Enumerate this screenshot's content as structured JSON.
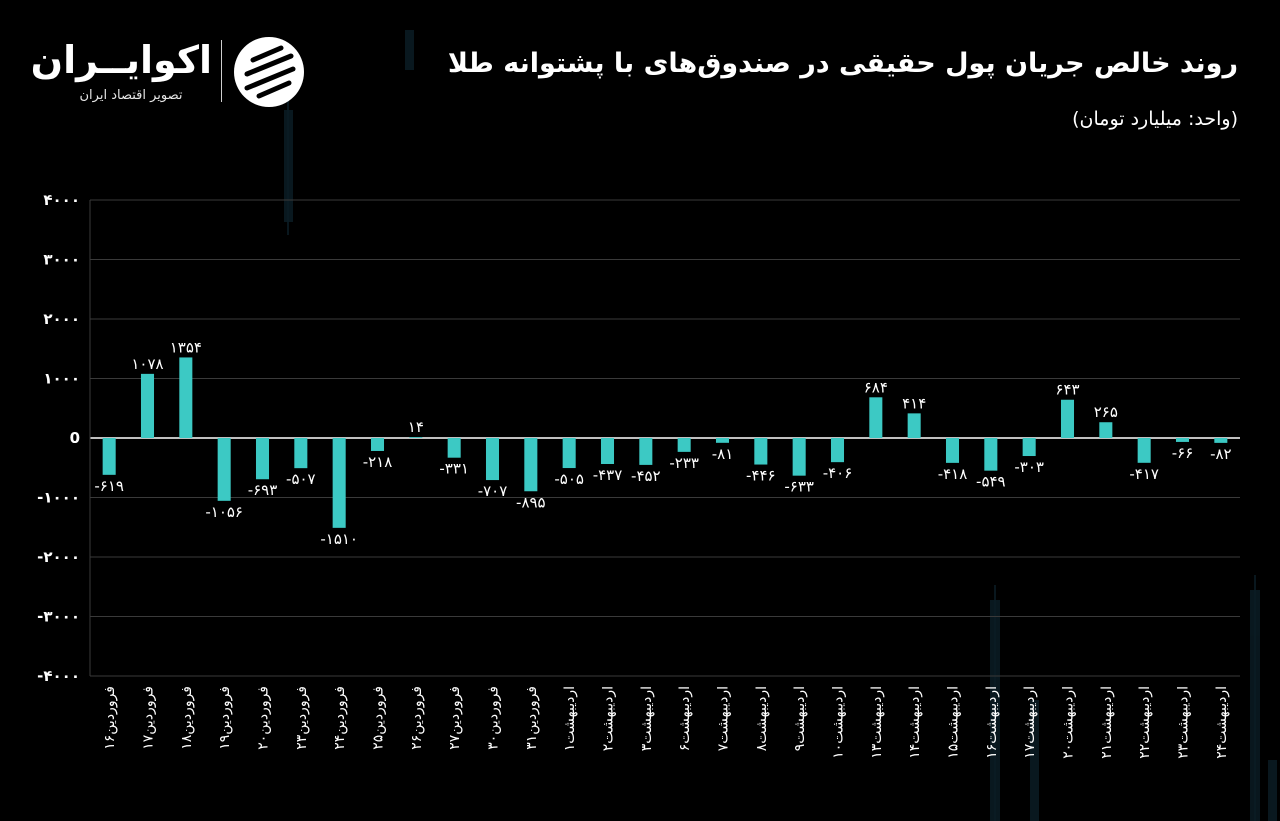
{
  "header": {
    "title": "روند خالص جریان پول حقیقی در صندوق‌های با پشتوانه طلا",
    "subtitle": "(واحد: میلیارد تومان)"
  },
  "logo": {
    "name": "اکوایــران",
    "tagline": "تصویر اقتصاد ایران"
  },
  "colors": {
    "bar": "#3cc9c4",
    "grid": "#3a3a3a",
    "background": "#000000"
  },
  "chart_data": {
    "type": "bar",
    "title": "روند خالص جریان پول حقیقی در صندوق‌های با پشتوانه طلا",
    "ylabel": "",
    "xlabel": "",
    "ylim": [
      -4000,
      4000
    ],
    "yticks": [
      4000,
      3000,
      2000,
      1000,
      0,
      -1000,
      -2000,
      -3000,
      -4000
    ],
    "ytick_labels": [
      "۴۰۰۰",
      "۳۰۰۰",
      "۲۰۰۰",
      "۱۰۰۰",
      "0",
      "-۱۰۰۰",
      "-۲۰۰۰",
      "-۳۰۰۰",
      "-۴۰۰۰"
    ],
    "grid": true,
    "categories": [
      "فروردین۱۶",
      "فروردین۱۷",
      "فروردین۱۸",
      "فروردین۱۹",
      "فروردین۲۰",
      "فروردین۲۳",
      "فروردین۲۴",
      "فروردین۲۵",
      "فروردین۲۶",
      "فروردین۲۷",
      "فروردین۳۰",
      "فروردین۳۱",
      "اردیبهشت۱",
      "اردیبهشت۲",
      "اردیبهشت۳",
      "اردیبهشت۶",
      "اردیبهشت۷",
      "اردیبهشت۸",
      "اردیبهشت۹",
      "اردیبهشت۱۰",
      "اردیبهشت۱۳",
      "اردیبهشت۱۴",
      "اردیبهشت۱۵",
      "اردیبهشت۱۶",
      "اردیبهشت۱۷",
      "اردیبهشت۲۰",
      "اردیبهشت۲۱",
      "اردیبهشت۲۲",
      "اردیبهشت۲۳",
      "اردیبهشت۲۴"
    ],
    "values": [
      -619,
      1078,
      1354,
      -1056,
      -693,
      -507,
      -1510,
      -218,
      14,
      -331,
      -707,
      -895,
      -505,
      -437,
      -452,
      -233,
      -81,
      -446,
      -633,
      -406,
      684,
      414,
      -418,
      -549,
      -303,
      643,
      265,
      -417,
      -66,
      -82
    ],
    "value_labels": [
      "-۶۱۹",
      "۱۰۷۸",
      "۱۳۵۴",
      "-۱۰۵۶",
      "-۶۹۳",
      "-۵۰۷",
      "-۱۵۱۰",
      "-۲۱۸",
      "۱۴",
      "-۳۳۱",
      "-۷۰۷",
      "-۸۹۵",
      "-۵۰۵",
      "-۴۳۷",
      "-۴۵۲",
      "-۲۳۳",
      "-۸۱",
      "-۴۴۶",
      "-۶۳۳",
      "-۴۰۶",
      "۶۸۴",
      "۴۱۴",
      "-۴۱۸",
      "-۵۴۹",
      "-۳۰۳",
      "۶۴۳",
      "۲۶۵",
      "-۴۱۷",
      "-۶۶",
      "-۸۲"
    ]
  }
}
